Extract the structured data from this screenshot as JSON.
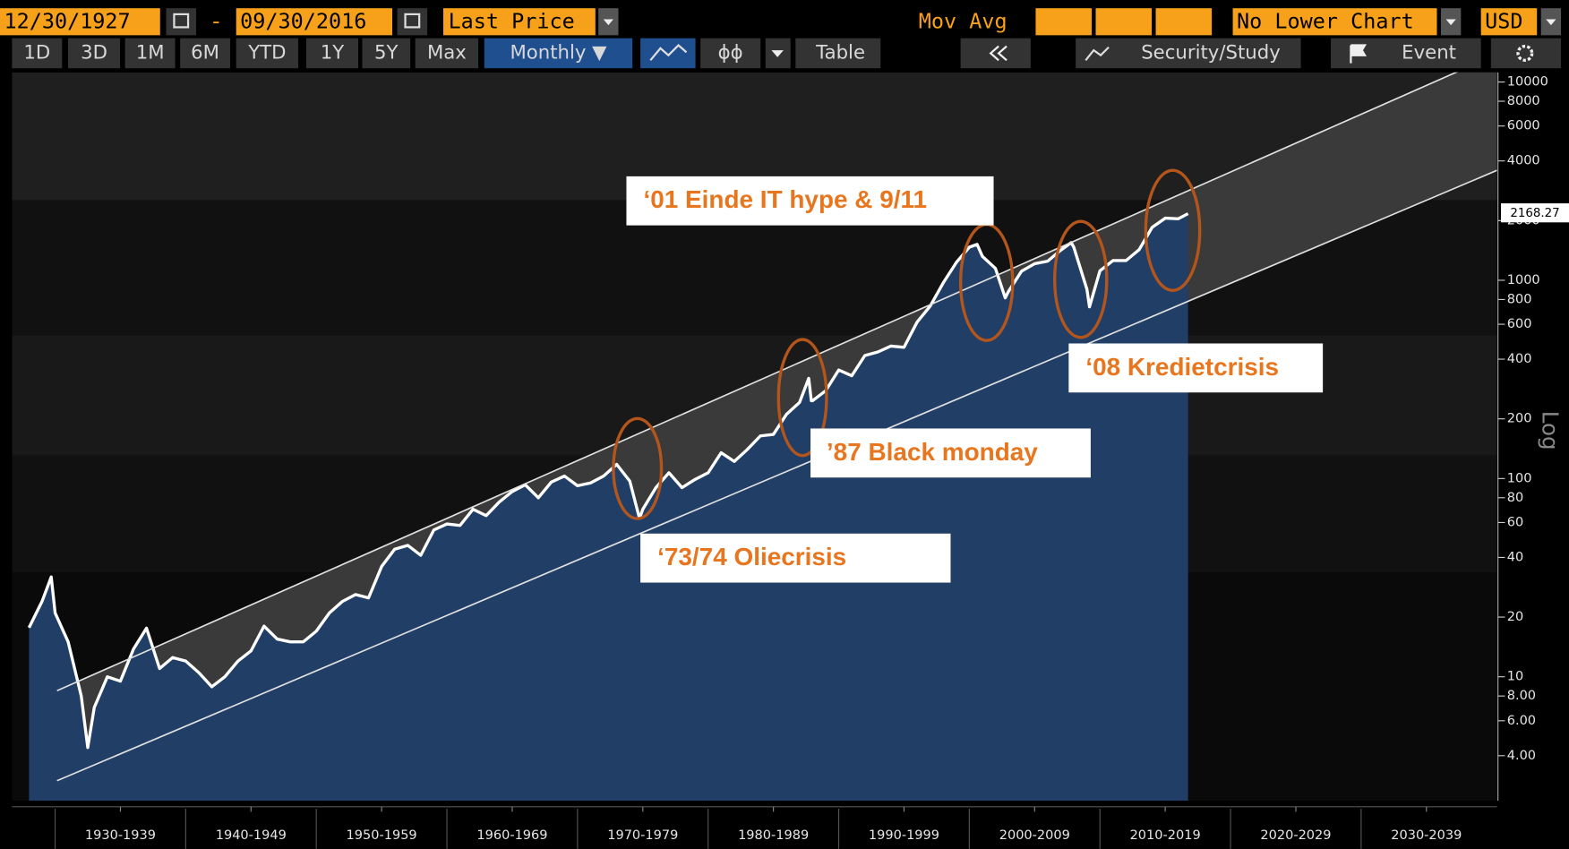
{
  "toolbar": {
    "start_date": "12/30/1927",
    "separator": "-",
    "end_date": "09/30/2016",
    "field": "Last Price",
    "study": "Mov Avg",
    "lower_chart": "No Lower Chart",
    "currency": "USD",
    "periods": [
      "1D",
      "3D",
      "1M",
      "6M",
      "YTD",
      "1Y",
      "5Y",
      "Max"
    ],
    "frequency": "Monthly ▼",
    "table": "Table",
    "security_study": "Security/Study",
    "event": "Event"
  },
  "chart_data": {
    "type": "line",
    "y_label": "Log",
    "log_scale": true,
    "color": "#ffffff",
    "area_color": "#213f66",
    "x": [
      1928,
      1929,
      1929.7,
      1930,
      1931,
      1932,
      1932.5,
      1933,
      1934,
      1935,
      1936,
      1937,
      1938,
      1939,
      1940,
      1941,
      1942,
      1943,
      1944,
      1945,
      1946,
      1947,
      1948,
      1949,
      1950,
      1951,
      1952,
      1953,
      1954,
      1955,
      1956,
      1957,
      1958,
      1959,
      1960,
      1961,
      1962,
      1963,
      1964,
      1965,
      1966,
      1967,
      1968,
      1969,
      1970,
      1971,
      1972,
      1973,
      1974,
      1974.75,
      1975,
      1976,
      1977,
      1978,
      1979,
      1980,
      1981,
      1982,
      1983,
      1984,
      1985,
      1986,
      1987,
      1987.7,
      1987.9,
      1988,
      1989,
      1990,
      1991,
      1992,
      1993,
      1994,
      1995,
      1996,
      1997,
      1998,
      1999,
      2000,
      2000.6,
      2001,
      2002,
      2002.75,
      2003,
      2004,
      2005,
      2006,
      2007,
      2007.8,
      2008,
      2009,
      2009.2,
      2010,
      2011,
      2012,
      2013,
      2014,
      2015,
      2016,
      2016.75
    ],
    "values": [
      17.7,
      24,
      31.9,
      21,
      15,
      8,
      4.4,
      7,
      10,
      9.5,
      13.8,
      17.6,
      11,
      12.5,
      12,
      10.5,
      8.9,
      10,
      12,
      13.5,
      18,
      15.5,
      15,
      15,
      17,
      21,
      24,
      26,
      25,
      36,
      44,
      46,
      41,
      55,
      59,
      58,
      70,
      65,
      76,
      86,
      93,
      80,
      96,
      103,
      92,
      95,
      103,
      118,
      97,
      63,
      70,
      90,
      107,
      90,
      99,
      107,
      135,
      122,
      140,
      164,
      167,
      211,
      242,
      320,
      247,
      247,
      277,
      353,
      330,
      417,
      435,
      466,
      459,
      615,
      740,
      970,
      1229,
      1469,
      1517,
      1320,
      1148,
      815,
      880,
      1111,
      1212,
      1248,
      1418,
      1549,
      1468,
      903,
      735,
      1115,
      1257,
      1257,
      1426,
      1848,
      2058,
      2044,
      2168.27
    ],
    "xlim": [
      1926.7,
      2040.4
    ],
    "xticks": [
      {
        "value": 1935,
        "label": "1930-1939"
      },
      {
        "value": 1945,
        "label": "1940-1949"
      },
      {
        "value": 1955,
        "label": "1950-1959"
      },
      {
        "value": 1965,
        "label": "1960-1969"
      },
      {
        "value": 1975,
        "label": "1970-1979"
      },
      {
        "value": 1985,
        "label": "1980-1989"
      },
      {
        "value": 1995,
        "label": "1990-1999"
      },
      {
        "value": 2005,
        "label": "2000-2009"
      },
      {
        "value": 2015,
        "label": "2010-2019"
      },
      {
        "value": 2025,
        "label": "2020-2029"
      },
      {
        "value": 2035,
        "label": "2030-2039"
      }
    ],
    "ylim": [
      2.37,
      11200
    ],
    "yticks": [
      {
        "value": 4,
        "label": "4.00"
      },
      {
        "value": 6,
        "label": "6.00"
      },
      {
        "value": 8,
        "label": "8.00"
      },
      10,
      20,
      40,
      60,
      80,
      100,
      200,
      400,
      600,
      800,
      1000,
      2000,
      4000,
      6000,
      8000,
      10000
    ],
    "annotations": [
      "‘01 Einde IT hype & 9/11",
      "‘08 Kredietcrisis",
      "’87 Black monday",
      "‘73/74 Oliecrisis"
    ]
  }
}
